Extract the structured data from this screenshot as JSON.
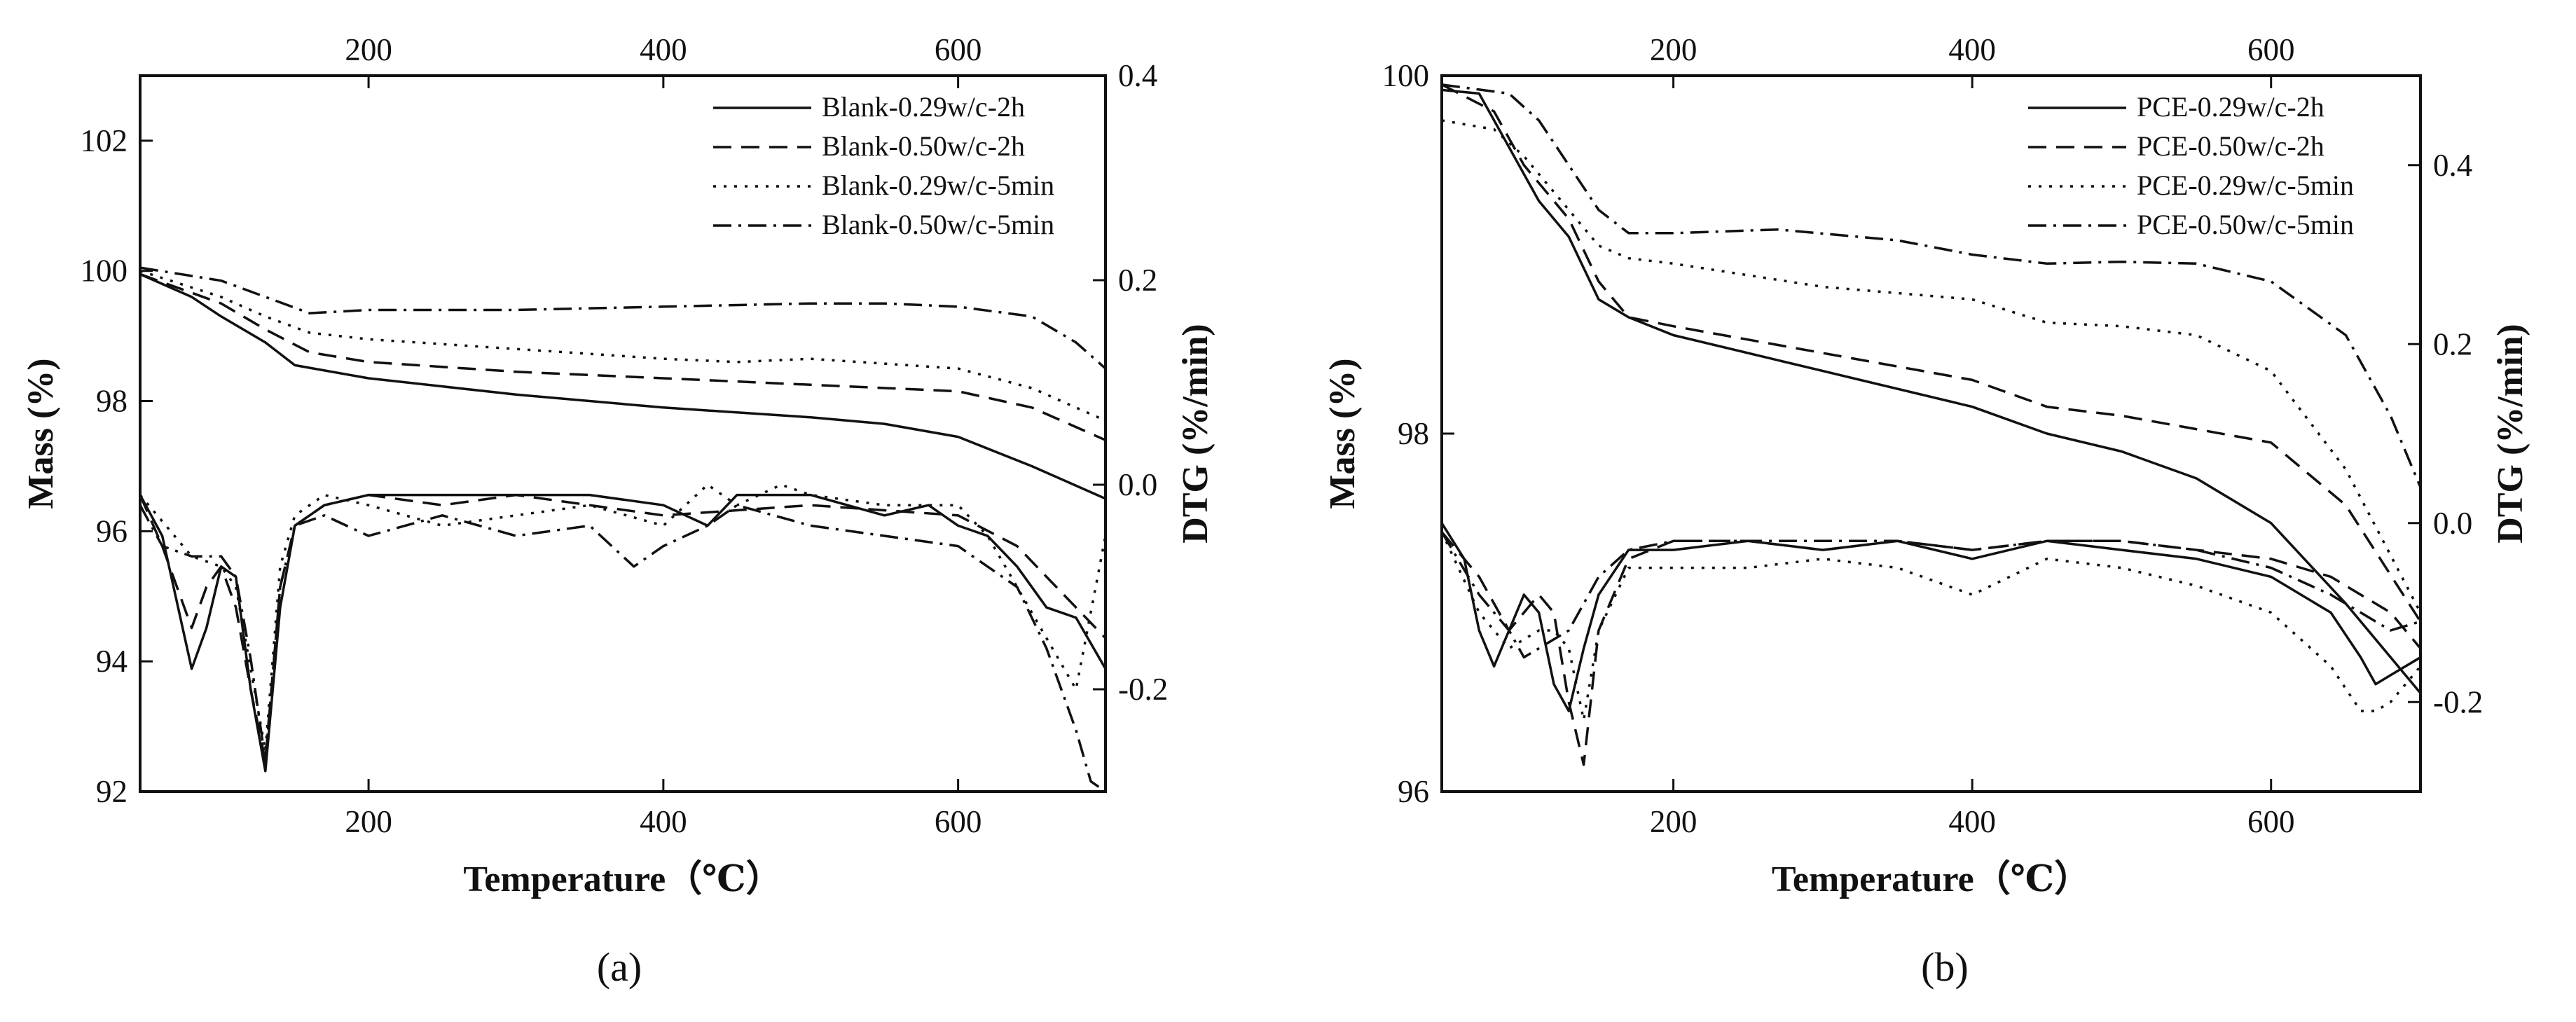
{
  "chart_data": [
    {
      "type": "line",
      "panel_label": "(a)",
      "xlabel": "Temperature（℃）",
      "ylabel_left": "Mass (%)",
      "ylabel_right": "DTG (%/min)",
      "xlim": [
        45,
        700
      ],
      "ylim_left": [
        92,
        103
      ],
      "ylim_right": [
        -0.3,
        0.4
      ],
      "x_ticks_bottom": [
        200,
        400,
        600
      ],
      "x_ticks_top": [
        200,
        400,
        600
      ],
      "y_ticks_left": [
        92,
        94,
        96,
        98,
        100,
        102
      ],
      "y_ticks_right": [
        -0.2,
        0.0,
        0.2,
        0.4
      ],
      "y_tick_labels_right": [
        "-0.2",
        "0.0",
        "0.2",
        "0.4"
      ],
      "legend": [
        "Blank-0.29w/c-2h",
        "Blank-0.50w/c-2h",
        "Blank-0.29w/c-5min",
        "Blank-0.50w/c-5min"
      ],
      "legend_position": "top-right",
      "mass_series": [
        {
          "name": "Blank-0.29w/c-2h",
          "style": "solid",
          "x": [
            45,
            80,
            100,
            130,
            150,
            200,
            300,
            400,
            500,
            550,
            600,
            650,
            700
          ],
          "y": [
            99.95,
            99.6,
            99.3,
            98.9,
            98.55,
            98.35,
            98.1,
            97.9,
            97.75,
            97.65,
            97.45,
            97.0,
            96.5
          ]
        },
        {
          "name": "Blank-0.50w/c-2h",
          "style": "dashed",
          "x": [
            45,
            100,
            130,
            160,
            200,
            300,
            400,
            500,
            600,
            650,
            700
          ],
          "y": [
            99.95,
            99.5,
            99.1,
            98.75,
            98.6,
            98.45,
            98.35,
            98.25,
            98.15,
            97.9,
            97.4
          ]
        },
        {
          "name": "Blank-0.29w/c-5min",
          "style": "dotted",
          "x": [
            45,
            100,
            130,
            160,
            200,
            300,
            400,
            450,
            500,
            600,
            650,
            700
          ],
          "y": [
            100.0,
            99.6,
            99.3,
            99.05,
            98.95,
            98.8,
            98.65,
            98.6,
            98.65,
            98.5,
            98.2,
            97.7
          ]
        },
        {
          "name": "Blank-0.50w/c-5min",
          "style": "dashdot",
          "x": [
            45,
            100,
            130,
            160,
            200,
            300,
            400,
            500,
            550,
            600,
            650,
            680,
            700
          ],
          "y": [
            100.05,
            99.85,
            99.6,
            99.35,
            99.4,
            99.4,
            99.45,
            99.5,
            99.5,
            99.45,
            99.3,
            98.9,
            98.5
          ]
        }
      ],
      "dtg_series": [
        {
          "name": "Blank-0.29w/c-2h",
          "style": "solid",
          "x": [
            45,
            60,
            80,
            90,
            100,
            110,
            120,
            130,
            140,
            150,
            170,
            200,
            250,
            300,
            350,
            400,
            430,
            450,
            480,
            500,
            550,
            580,
            600,
            620,
            640,
            660,
            680,
            700
          ],
          "y": [
            -0.01,
            -0.05,
            -0.18,
            -0.14,
            -0.08,
            -0.09,
            -0.2,
            -0.28,
            -0.12,
            -0.04,
            -0.02,
            -0.01,
            -0.01,
            -0.01,
            -0.01,
            -0.02,
            -0.04,
            -0.01,
            -0.01,
            -0.01,
            -0.03,
            -0.02,
            -0.04,
            -0.05,
            -0.08,
            -0.12,
            -0.13,
            -0.18
          ]
        },
        {
          "name": "Blank-0.50w/c-2h",
          "style": "dashed",
          "x": [
            45,
            60,
            80,
            90,
            100,
            110,
            120,
            130,
            140,
            150,
            170,
            200,
            250,
            300,
            400,
            500,
            600,
            640,
            660,
            680,
            700
          ],
          "y": [
            -0.01,
            -0.06,
            -0.14,
            -0.1,
            -0.08,
            -0.12,
            -0.2,
            -0.27,
            -0.1,
            -0.04,
            -0.02,
            -0.01,
            -0.02,
            -0.01,
            -0.03,
            -0.02,
            -0.03,
            -0.06,
            -0.09,
            -0.12,
            -0.15
          ]
        },
        {
          "name": "Blank-0.29w/c-5min",
          "style": "dotted",
          "x": [
            45,
            80,
            100,
            110,
            120,
            130,
            140,
            150,
            170,
            200,
            250,
            300,
            350,
            400,
            430,
            450,
            480,
            500,
            550,
            600,
            620,
            640,
            660,
            680,
            700
          ],
          "y": [
            -0.01,
            -0.07,
            -0.08,
            -0.1,
            -0.18,
            -0.26,
            -0.08,
            -0.03,
            -0.01,
            -0.02,
            -0.04,
            -0.03,
            -0.02,
            -0.04,
            0.0,
            -0.02,
            0.0,
            -0.01,
            -0.02,
            -0.02,
            -0.05,
            -0.1,
            -0.15,
            -0.2,
            -0.05
          ]
        },
        {
          "name": "Blank-0.50w/c-5min",
          "style": "dashdot",
          "x": [
            45,
            60,
            80,
            100,
            110,
            120,
            130,
            140,
            150,
            170,
            200,
            250,
            300,
            350,
            380,
            400,
            430,
            450,
            500,
            550,
            600,
            640,
            660,
            680,
            690,
            700
          ],
          "y": [
            -0.02,
            -0.06,
            -0.07,
            -0.07,
            -0.09,
            -0.17,
            -0.27,
            -0.1,
            -0.04,
            -0.03,
            -0.05,
            -0.03,
            -0.05,
            -0.04,
            -0.08,
            -0.06,
            -0.04,
            -0.02,
            -0.04,
            -0.05,
            -0.06,
            -0.1,
            -0.16,
            -0.24,
            -0.29,
            -0.3
          ]
        }
      ]
    },
    {
      "type": "line",
      "panel_label": "(b)",
      "xlabel": "Temperature（℃）",
      "ylabel_left": "Mass (%)",
      "ylabel_right": "DTG (%/min)",
      "xlim": [
        45,
        700
      ],
      "ylim_left": [
        96,
        100
      ],
      "ylim_right": [
        -0.3,
        0.5
      ],
      "x_ticks_bottom": [
        200,
        400,
        600
      ],
      "x_ticks_top": [
        200,
        400,
        600
      ],
      "y_ticks_left": [
        96,
        98,
        100
      ],
      "y_ticks_right": [
        -0.2,
        0.0,
        0.2,
        0.4
      ],
      "y_tick_labels_right": [
        "-0.2",
        "0.0",
        "0.2",
        "0.4"
      ],
      "legend": [
        "PCE-0.29w/c-2h",
        "PCE-0.50w/c-2h",
        "PCE-0.29w/c-5min",
        "PCE-0.50w/c-5min"
      ],
      "legend_position": "top-right",
      "mass_series": [
        {
          "name": "PCE-0.29w/c-2h",
          "style": "solid",
          "x": [
            45,
            70,
            90,
            110,
            130,
            150,
            170,
            200,
            300,
            400,
            450,
            500,
            550,
            600,
            650,
            700
          ],
          "y": [
            99.92,
            99.9,
            99.6,
            99.3,
            99.1,
            98.75,
            98.65,
            98.55,
            98.35,
            98.15,
            98.0,
            97.9,
            97.75,
            97.5,
            97.05,
            96.55
          ]
        },
        {
          "name": "PCE-0.50w/c-2h",
          "style": "dashed",
          "x": [
            45,
            80,
            100,
            130,
            150,
            170,
            200,
            300,
            400,
            450,
            500,
            600,
            650,
            700
          ],
          "y": [
            99.95,
            99.8,
            99.5,
            99.2,
            98.85,
            98.65,
            98.6,
            98.45,
            98.3,
            98.15,
            98.1,
            97.95,
            97.6,
            96.95
          ]
        },
        {
          "name": "PCE-0.29w/c-5min",
          "style": "dotted",
          "x": [
            45,
            80,
            100,
            130,
            150,
            170,
            200,
            300,
            400,
            450,
            500,
            550,
            600,
            650,
            700
          ],
          "y": [
            99.75,
            99.7,
            99.55,
            99.25,
            99.05,
            98.98,
            98.95,
            98.82,
            98.75,
            98.62,
            98.6,
            98.55,
            98.35,
            97.8,
            97.0
          ]
        },
        {
          "name": "PCE-0.50w/c-5min",
          "style": "dashdot",
          "x": [
            45,
            90,
            110,
            130,
            150,
            170,
            200,
            270,
            350,
            400,
            450,
            500,
            550,
            600,
            650,
            680,
            700
          ],
          "y": [
            99.95,
            99.9,
            99.75,
            99.5,
            99.25,
            99.12,
            99.12,
            99.14,
            99.08,
            99.0,
            98.95,
            98.96,
            98.95,
            98.85,
            98.55,
            98.1,
            97.7
          ]
        }
      ],
      "dtg_series": [
        {
          "name": "PCE-0.29w/c-2h",
          "style": "solid",
          "x": [
            45,
            60,
            70,
            80,
            90,
            100,
            110,
            120,
            130,
            140,
            150,
            170,
            200,
            250,
            300,
            350,
            400,
            450,
            500,
            550,
            600,
            640,
            660,
            670,
            680,
            700
          ],
          "y": [
            0.0,
            -0.04,
            -0.12,
            -0.16,
            -0.12,
            -0.08,
            -0.1,
            -0.18,
            -0.21,
            -0.14,
            -0.08,
            -0.03,
            -0.03,
            -0.02,
            -0.03,
            -0.02,
            -0.04,
            -0.02,
            -0.03,
            -0.04,
            -0.06,
            -0.1,
            -0.15,
            -0.18,
            -0.17,
            -0.15
          ]
        },
        {
          "name": "PCE-0.50w/c-2h",
          "style": "dashed",
          "x": [
            45,
            70,
            90,
            100,
            110,
            120,
            130,
            140,
            150,
            170,
            200,
            250,
            300,
            350,
            400,
            450,
            500,
            550,
            600,
            640,
            660,
            680,
            700
          ],
          "y": [
            -0.01,
            -0.06,
            -0.12,
            -0.1,
            -0.08,
            -0.1,
            -0.2,
            -0.27,
            -0.12,
            -0.04,
            -0.02,
            -0.02,
            -0.03,
            -0.02,
            -0.03,
            -0.02,
            -0.02,
            -0.03,
            -0.04,
            -0.06,
            -0.08,
            -0.1,
            -0.14
          ]
        },
        {
          "name": "PCE-0.29w/c-5min",
          "style": "dotted",
          "x": [
            45,
            70,
            90,
            110,
            120,
            130,
            140,
            150,
            170,
            200,
            250,
            300,
            350,
            400,
            450,
            500,
            550,
            600,
            640,
            660,
            670,
            680,
            700
          ],
          "y": [
            -0.01,
            -0.1,
            -0.14,
            -0.12,
            -0.12,
            -0.14,
            -0.22,
            -0.12,
            -0.05,
            -0.05,
            -0.05,
            -0.04,
            -0.05,
            -0.08,
            -0.04,
            -0.05,
            -0.07,
            -0.1,
            -0.16,
            -0.21,
            -0.21,
            -0.2,
            -0.16
          ]
        },
        {
          "name": "PCE-0.50w/c-5min",
          "style": "dashdot",
          "x": [
            45,
            70,
            90,
            100,
            110,
            130,
            150,
            170,
            200,
            250,
            300,
            350,
            400,
            450,
            500,
            550,
            600,
            640,
            660,
            680,
            700
          ],
          "y": [
            -0.01,
            -0.08,
            -0.12,
            -0.15,
            -0.14,
            -0.12,
            -0.06,
            -0.03,
            -0.02,
            -0.02,
            -0.02,
            -0.02,
            -0.03,
            -0.02,
            -0.02,
            -0.03,
            -0.05,
            -0.08,
            -0.1,
            -0.12,
            -0.11
          ]
        }
      ]
    }
  ]
}
